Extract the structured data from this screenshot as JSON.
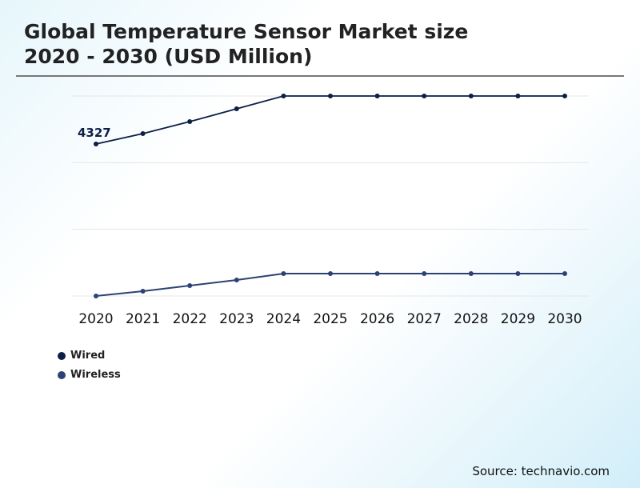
{
  "title_line1": "Global Temperature Sensor Market size",
  "title_line2": "2020 - 2030 (USD Million)",
  "source": "Source: technavio.com",
  "chart_data": {
    "type": "line",
    "title": "Global Temperature Sensor Market size 2020 - 2030 (USD Million)",
    "x": [
      "2020",
      "2021",
      "2022",
      "2023",
      "2024",
      "2025",
      "2026",
      "2027",
      "2028",
      "2029",
      "2030"
    ],
    "series": [
      {
        "name": "Wired",
        "color": "#0d1f45",
        "values": [
          4327,
          4623,
          4964,
          5329,
          5693,
          5693,
          5693,
          5693,
          5693,
          5693,
          5693
        ]
      },
      {
        "name": "Wireless",
        "color": "#2c4275",
        "values": [
          0,
          137,
          296,
          455,
          638,
          638,
          638,
          638,
          638,
          638,
          638
        ]
      }
    ],
    "data_labels": [
      {
        "series": "Wired",
        "x": "2020",
        "text": "4327"
      }
    ],
    "ylim": [
      0,
      5693
    ],
    "y_ticks_shown": false,
    "grid": "horizontal",
    "legend_placement": "bottom-left"
  }
}
